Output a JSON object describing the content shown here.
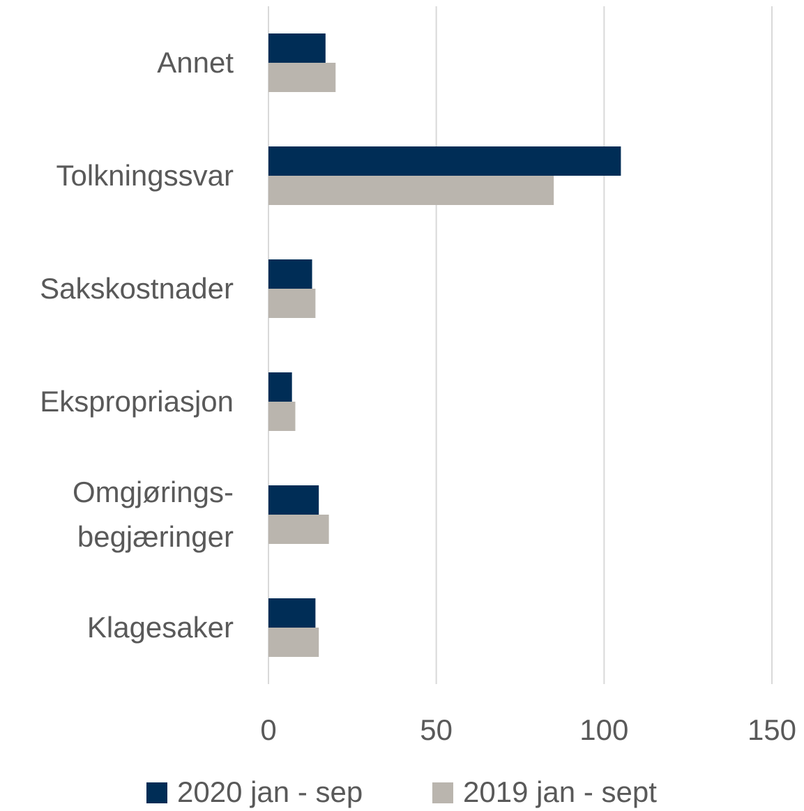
{
  "chart_data": {
    "type": "hbar",
    "categories": [
      "Annet",
      "Tolkningssvar",
      "Sakskostnader",
      "Ekspropriasjon",
      "Omgjørings-\nbegjæringer",
      "Klagesaker"
    ],
    "series": [
      {
        "name": "2020 jan - sep",
        "color": "#002d56",
        "values": [
          17,
          105,
          13,
          7,
          15,
          14
        ]
      },
      {
        "name": "2019 jan - sept",
        "color": "#bab5ae",
        "values": [
          20,
          85,
          14,
          8,
          18,
          15
        ]
      }
    ],
    "xlim": [
      0,
      150
    ],
    "xticks": [
      0,
      50,
      100,
      150
    ],
    "grid": true,
    "legend": "bottom"
  }
}
